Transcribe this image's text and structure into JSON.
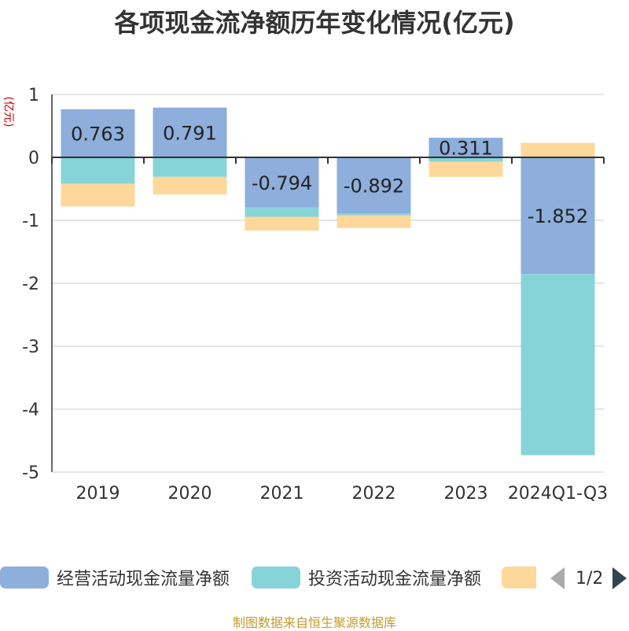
{
  "chart_data": {
    "type": "bar",
    "stacked": true,
    "title": "各项现金流净额历年变化情况(亿元)",
    "ylabel": "(亿元)",
    "categories": [
      "2019",
      "2020",
      "2021",
      "2022",
      "2023",
      "2024Q1-Q3"
    ],
    "ylim": [
      -5,
      1
    ],
    "yticks": [
      1,
      0,
      -1,
      -2,
      -3,
      -4,
      -5
    ],
    "grid": true,
    "series": [
      {
        "name": "经营活动现金流量净额",
        "color": "#8eaedb",
        "values": [
          0.763,
          0.791,
          -0.794,
          -0.892,
          0.311,
          -1.852
        ],
        "labels": [
          "0.763",
          "0.791",
          "-0.794",
          "-0.892",
          "0.311",
          "-1.852"
        ]
      },
      {
        "name": "投资活动现金流量净额",
        "color": "#86d4d8",
        "values": [
          -0.42,
          -0.31,
          -0.15,
          -0.03,
          -0.07,
          -2.88
        ]
      },
      {
        "name": "",
        "color": "#fdd89a",
        "values": [
          -0.36,
          -0.28,
          -0.22,
          -0.2,
          -0.24,
          0.23
        ]
      }
    ],
    "legend_position": "bottom"
  },
  "legend": {
    "items": [
      {
        "label": "经营活动现金流量净额",
        "color": "#8eaedb"
      },
      {
        "label": "投资活动现金流量净额",
        "color": "#86d4d8"
      },
      {
        "label": "",
        "color": "#fdd89a"
      }
    ],
    "page": "1/2"
  },
  "source": "制图数据来自恒生聚源数据库"
}
